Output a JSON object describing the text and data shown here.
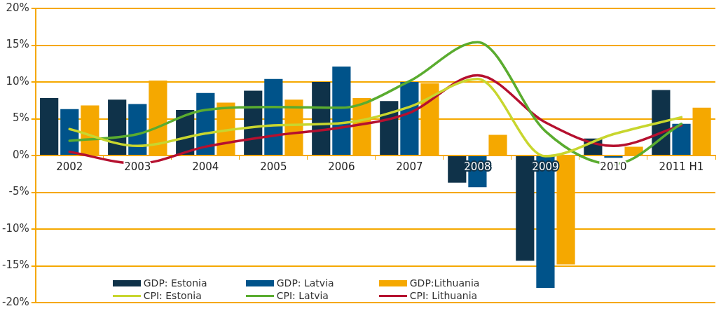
{
  "chart_data": {
    "type": "bar",
    "categories": [
      "2002",
      "2003",
      "2004",
      "2005",
      "2006",
      "2007",
      "2008",
      "2009",
      "2010",
      "2011 H1"
    ],
    "series": [
      {
        "name": "GDP: Estonia",
        "color": "#0f3249",
        "values": [
          7.8,
          7.6,
          6.2,
          8.8,
          10.0,
          7.4,
          -3.7,
          -14.3,
          2.3,
          8.9
        ]
      },
      {
        "name": "GDP: Latvia",
        "color": "#00538a",
        "values": [
          6.3,
          7.0,
          8.5,
          10.4,
          12.1,
          10.0,
          -4.3,
          -18.0,
          -0.3,
          4.3
        ]
      },
      {
        "name": "GDP:Lithuania",
        "color": "#f5a800",
        "values": [
          6.8,
          10.2,
          7.2,
          7.6,
          7.8,
          9.8,
          2.8,
          -14.8,
          1.2,
          6.5
        ]
      },
      {
        "name": "CPI: Estonia",
        "type": "line",
        "color": "#c8d62e",
        "values": [
          3.6,
          1.3,
          3.0,
          4.1,
          4.4,
          6.6,
          10.4,
          -0.1,
          2.9,
          5.2
        ]
      },
      {
        "name": "CPI: Latvia",
        "type": "line",
        "color": "#5aac2f",
        "values": [
          2.0,
          2.9,
          6.2,
          6.6,
          6.5,
          10.1,
          15.4,
          3.3,
          -1.2,
          4.3
        ]
      },
      {
        "name": "CPI: Lithuania",
        "type": "line",
        "color": "#b5102f",
        "values": [
          0.5,
          -1.1,
          1.2,
          2.7,
          3.8,
          5.8,
          10.9,
          4.5,
          1.3,
          4.1
        ]
      }
    ],
    "ylim": [
      -20,
      20
    ],
    "yticks": [
      {
        "value": -20,
        "label": "-20%"
      },
      {
        "value": -15,
        "label": "-15%"
      },
      {
        "value": -10,
        "label": "-10%"
      },
      {
        "value": -5,
        "label": "-5%"
      },
      {
        "value": 0,
        "label": "0%"
      },
      {
        "value": 5,
        "label": "5%"
      },
      {
        "value": 10,
        "label": "10%"
      },
      {
        "value": 15,
        "label": "15%"
      },
      {
        "value": 20,
        "label": "20%"
      }
    ],
    "grid": "y",
    "legend": "bottom left",
    "marker": "none",
    "line_style": "solid"
  }
}
